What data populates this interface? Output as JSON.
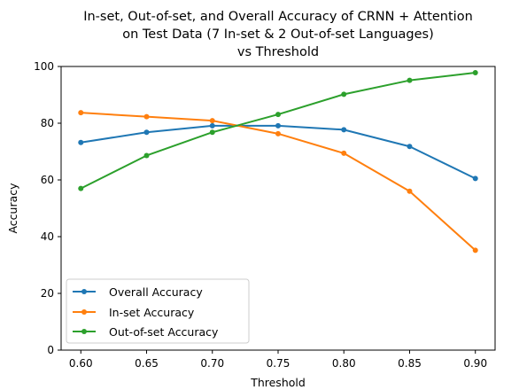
{
  "chart_data": {
    "type": "line",
    "title_lines": [
      "In-set, Out-of-set, and Overall Accuracy of CRNN + Attention",
      "on Test Data (7 In-set & 2 Out-of-set Languages)",
      "vs Threshold"
    ],
    "xlabel": "Threshold",
    "ylabel": "Accuracy",
    "x": [
      0.6,
      0.65,
      0.7,
      0.75,
      0.8,
      0.85,
      0.9
    ],
    "x_tick_labels": [
      "0.60",
      "0.65",
      "0.70",
      "0.75",
      "0.80",
      "0.85",
      "0.90"
    ],
    "y_ticks": [
      0,
      20,
      40,
      60,
      80,
      100
    ],
    "y_tick_labels": [
      "0",
      "20",
      "40",
      "60",
      "80",
      "100"
    ],
    "xlim": [
      0.585,
      0.915
    ],
    "ylim": [
      0,
      100
    ],
    "grid": false,
    "legend_position": "lower-left",
    "series": [
      {
        "name": "Overall Accuracy",
        "color": "#1f77b4",
        "values": [
          73.2,
          76.8,
          79.1,
          79.1,
          77.7,
          71.8,
          60.5
        ]
      },
      {
        "name": "In-set Accuracy",
        "color": "#ff7f0e",
        "values": [
          83.7,
          82.3,
          80.9,
          76.3,
          69.4,
          56.0,
          35.2
        ]
      },
      {
        "name": "Out-of-set Accuracy",
        "color": "#2ca02c",
        "values": [
          57.0,
          68.6,
          76.8,
          83.1,
          90.2,
          95.1,
          97.8
        ]
      }
    ]
  }
}
